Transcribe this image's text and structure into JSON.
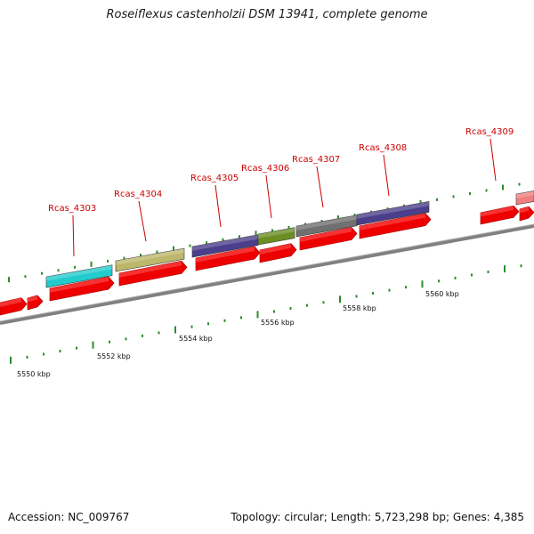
{
  "title": "Roseiflexus castenholzii DSM 13941, complete genome",
  "footer": {
    "accession": "Accession: NC_009767",
    "summary": "Topology: circular; Length: 5,723,298 bp; Genes: 4,385"
  },
  "colors": {
    "cds": "#ee0000",
    "ruler": "#808080",
    "tick": "#2e8b2e",
    "label": "#cc0000"
  },
  "genes": [
    {
      "name": "Rcas_4303",
      "color": "#22cccc"
    },
    {
      "name": "Rcas_4304",
      "color": "#bdb76b"
    },
    {
      "name": "Rcas_4305",
      "color": "#4b3f8c"
    },
    {
      "name": "Rcas_4306",
      "color": "#6b8e23"
    },
    {
      "name": "Rcas_4307",
      "color": "#707070"
    },
    {
      "name": "Rcas_4308",
      "color": "#4b3f8c"
    },
    {
      "name": "Rcas_4309",
      "color": "#f08080"
    }
  ],
  "kbp_labels": [
    "5550 kbp",
    "5552 kbp",
    "5554 kbp",
    "5556 kbp",
    "5558 kbp",
    "5560 kbp"
  ]
}
